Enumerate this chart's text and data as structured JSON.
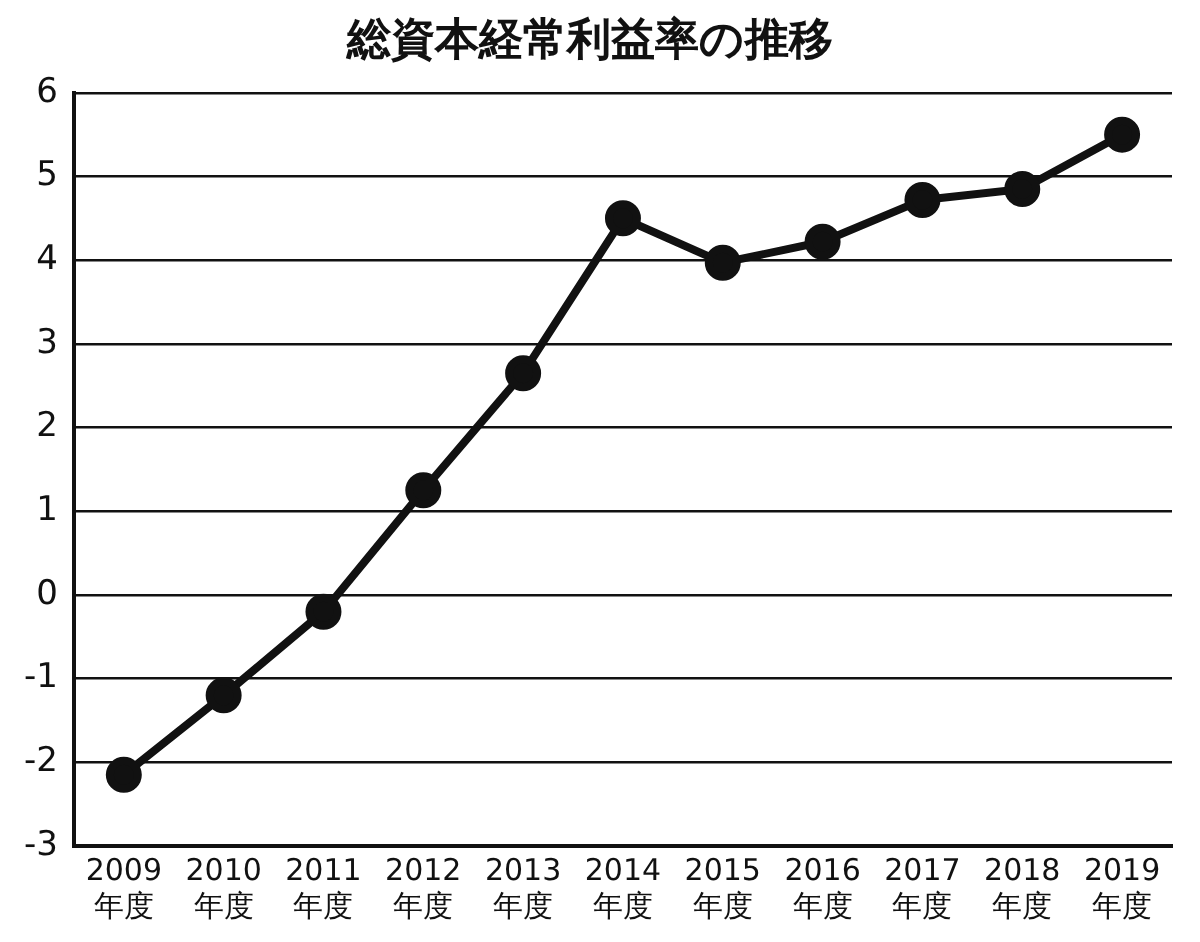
{
  "chart_data": {
    "type": "line",
    "title": "総資本経常利益率の推移",
    "categories": [
      "2009\n年度",
      "2010\n年度",
      "2011\n年度",
      "2012\n年度",
      "2013\n年度",
      "2014\n年度",
      "2015\n年度",
      "2016\n年度",
      "2017\n年度",
      "2018\n年度",
      "2019\n年度"
    ],
    "series": [
      {
        "color": "#111111",
        "values": [
          -2.15,
          -1.2,
          -0.2,
          1.25,
          2.65,
          4.5,
          3.97,
          4.22,
          4.72,
          4.85,
          5.5
        ]
      }
    ],
    "ylim": [
      -3,
      6
    ],
    "yticks": [
      -3,
      -2,
      -1,
      0,
      1,
      2,
      3,
      4,
      5,
      6
    ],
    "grid": "y",
    "legend": false,
    "marker": "circle",
    "line_style": "solid"
  }
}
